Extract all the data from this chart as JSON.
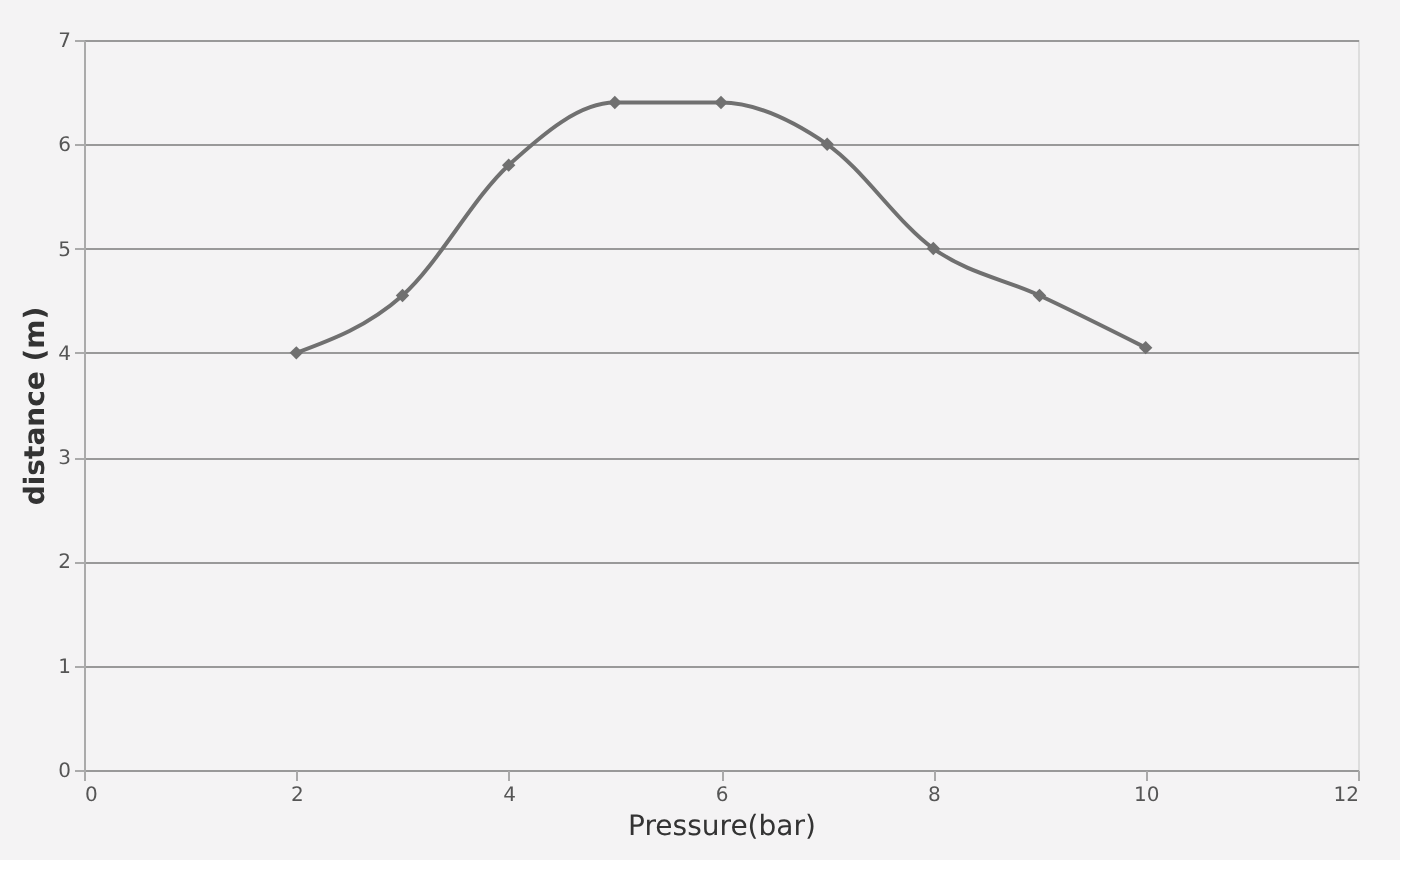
{
  "chart_data": {
    "type": "line",
    "xlabel": "Pressure(bar)",
    "ylabel": "distance (m)",
    "x": [
      2,
      3,
      4,
      5,
      6,
      7,
      8,
      9,
      10
    ],
    "series": [
      {
        "color": "#707070",
        "values": [
          4.0,
          4.55,
          5.8,
          6.4,
          6.4,
          6.0,
          5.0,
          4.55,
          4.05
        ]
      }
    ],
    "xlim": [
      0,
      12
    ],
    "xticks": [
      0,
      2,
      4,
      6,
      8,
      10,
      12
    ],
    "ylim": [
      0,
      7
    ],
    "yticks": [
      0,
      1,
      2,
      3,
      4,
      5,
      6,
      7
    ],
    "grid": "y",
    "marker": "diamond",
    "line_style": "solid"
  }
}
